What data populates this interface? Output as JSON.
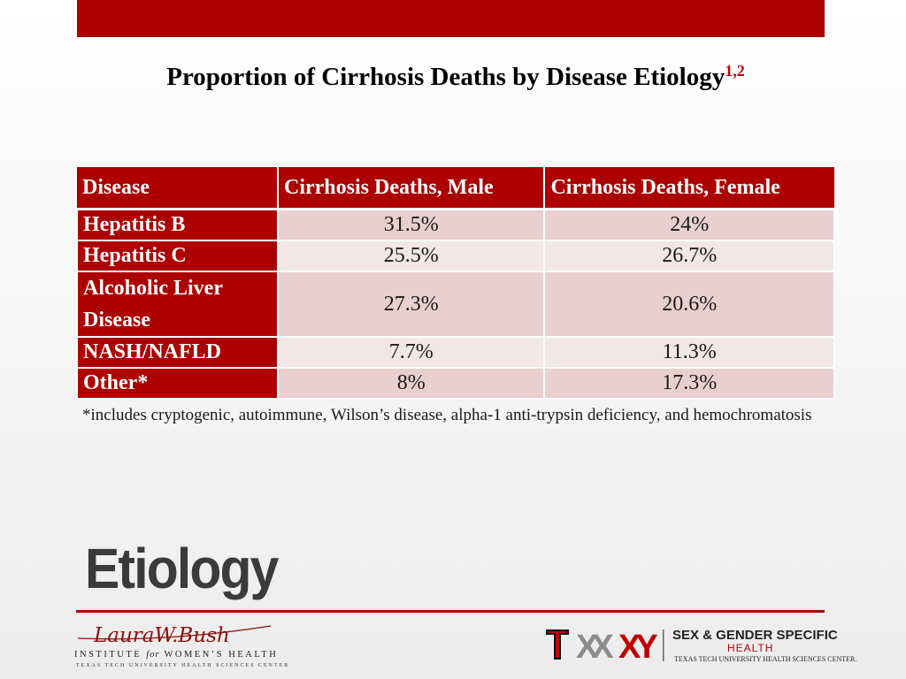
{
  "title": {
    "text": "Proportion of Cirrhosis Deaths by Disease Etiology",
    "superscript": "1,2"
  },
  "table": {
    "headers": [
      "Disease",
      "Cirrhosis Deaths, Male",
      "Cirrhosis Deaths, Female"
    ],
    "rows": [
      {
        "disease": "Hepatitis B",
        "male": "31.5%",
        "female": "24%"
      },
      {
        "disease": "Hepatitis C",
        "male": "25.5%",
        "female": "26.7%"
      },
      {
        "disease": "Alcoholic Liver Disease",
        "male": "27.3%",
        "female": "20.6%"
      },
      {
        "disease": "NASH/NAFLD",
        "male": "7.7%",
        "female": "11.3%"
      },
      {
        "disease": "Other*",
        "male": "8%",
        "female": "17.3%"
      }
    ]
  },
  "footnote": "*includes cryptogenic, autoimmune, Wilson’s disease, alpha-1 anti-trypsin deficiency, and hemochromatosis",
  "section_title": "Etiology",
  "logos": {
    "left": {
      "script": "LauraW.Bush",
      "line1": "INSTITUTE for WOMEN’S HEALTH",
      "line2": "TEXAS TECH UNIVERSITY HEALTH SCIENCES CENTER"
    },
    "right": {
      "title": "SEX & GENDER SPECIFIC",
      "health": "HEALTH",
      "sub": "TEXAS TECH UNIVERSITY HEALTH SCIENCES CENTER."
    }
  },
  "colors": {
    "brand_red": "#ad0000",
    "row_shade_a": "#e8cfd0",
    "row_shade_b": "#f2e6e6",
    "title_gray": "#3b3b3b"
  }
}
